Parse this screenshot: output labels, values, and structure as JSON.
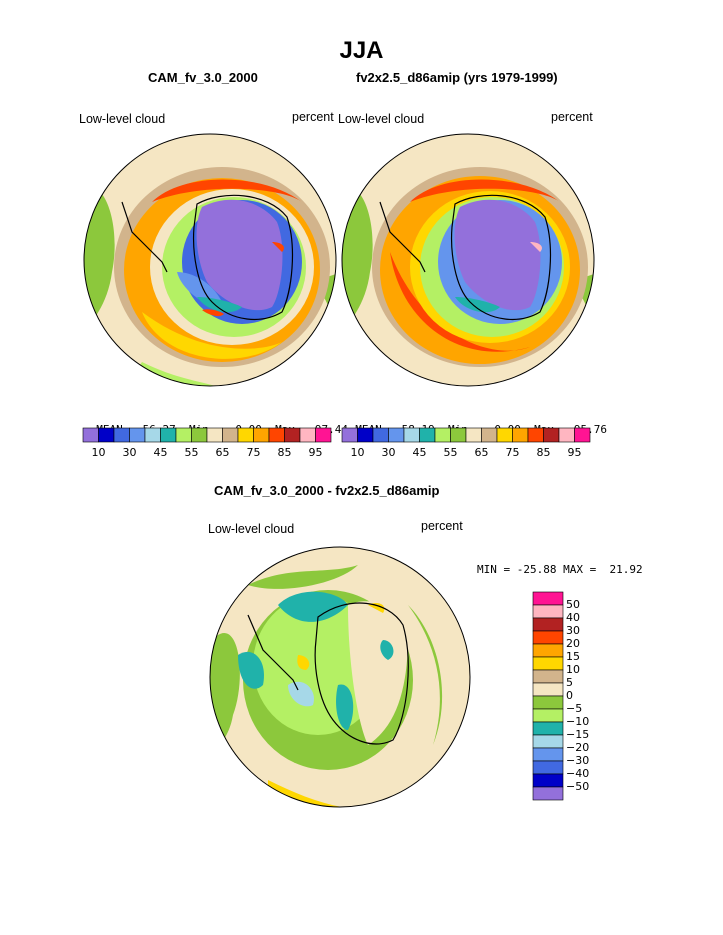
{
  "page_title": "JJA",
  "panel_left": {
    "case_title": "CAM_fv_3.0_2000",
    "field_label": "Low-level cloud",
    "units": "percent",
    "mean_label": "MEAN=",
    "mean_value": "56.27",
    "min_label": "Min=",
    "min_value": "0.00",
    "max_label": "Max=",
    "max_value": "97.44"
  },
  "panel_right": {
    "case_title": "fv2x2.5_d86amip (yrs 1979-1999)",
    "field_label": "Low-level cloud",
    "units": "percent",
    "mean_label": "MEAN=",
    "mean_value": "58.19",
    "min_label": "Min=",
    "min_value": "0.00",
    "max_label": "Max=",
    "max_value": "95.76"
  },
  "panel_diff": {
    "case_title": "CAM_fv_3.0_2000 - fv2x2.5_d86amip",
    "field_label": "Low-level cloud",
    "units": "percent",
    "min_max_text": "MIN = -25.88 MAX =  21.92"
  },
  "colorbar_main": {
    "colors": [
      "#9370db",
      "#0000c8",
      "#4169e1",
      "#6495ed",
      "#a6d8e8",
      "#20b2aa",
      "#b4f064",
      "#8cc83c",
      "#f5e6c3",
      "#d2b48c",
      "#ffd700",
      "#ffa500",
      "#ff4500",
      "#b22222",
      "#ffb6c1",
      "#ff1493"
    ],
    "tick_labels": [
      "10",
      "30",
      "45",
      "55",
      "65",
      "75",
      "85",
      "95"
    ]
  },
  "colorbar_diff": {
    "colors": [
      "#ff1493",
      "#ffb6c1",
      "#b22222",
      "#ff4500",
      "#ffa500",
      "#ffd700",
      "#d2b48c",
      "#f5e6c3",
      "#8cc83c",
      "#b4f064",
      "#20b2aa",
      "#a6d8e8",
      "#6495ed",
      "#4169e1",
      "#0000c8",
      "#9370db"
    ],
    "tick_labels": [
      "50",
      "40",
      "30",
      "20",
      "15",
      "10",
      "5",
      "0",
      "−5",
      "−10",
      "−15",
      "−20",
      "−30",
      "−40",
      "−50"
    ]
  }
}
